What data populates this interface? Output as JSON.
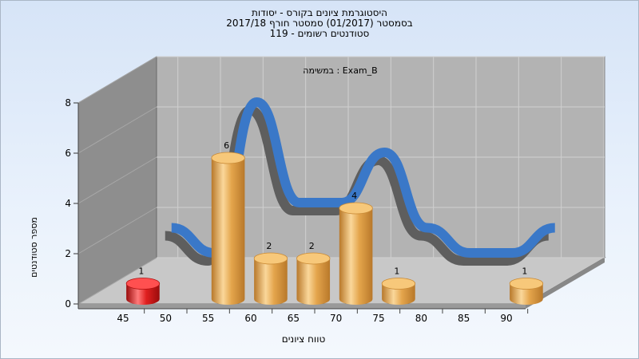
{
  "titles": {
    "line1": "היסטוגרמת ציונים בקורס - יסודות",
    "line2": "בסמסטר  (01/2017)  סמסטר חורף 2017/18",
    "line3": "סטודנטים רשומים - 119"
  },
  "chart_data": {
    "type": "bar",
    "title": "Exam_B : במשימה",
    "xlabel": "טווח ציונים",
    "ylabel": "מספר סטודנטים",
    "ylim": [
      0,
      8
    ],
    "yticks": [
      0,
      2,
      4,
      6,
      8
    ],
    "xticks": [
      "45",
      "50",
      "55",
      "60",
      "65",
      "70",
      "75",
      "80",
      "85",
      "90"
    ],
    "bars": [
      {
        "x": "45",
        "value": 1,
        "label": "1",
        "color": "#e81818"
      },
      {
        "x": "55",
        "value": 6,
        "label": "6",
        "color": "#e8a84a"
      },
      {
        "x": "60",
        "value": 2,
        "label": "2",
        "color": "#e8a84a"
      },
      {
        "x": "65",
        "value": 2,
        "label": "2",
        "color": "#e8a84a"
      },
      {
        "x": "70",
        "value": 4,
        "label": "4",
        "color": "#e8a84a"
      },
      {
        "x": "75",
        "value": 1,
        "label": "1",
        "color": "#e8a84a"
      },
      {
        "x": "90",
        "value": 1,
        "label": "1",
        "color": "#e8a84a"
      }
    ],
    "curve_color": "#3a78c8",
    "grid": true,
    "style": "3d"
  }
}
